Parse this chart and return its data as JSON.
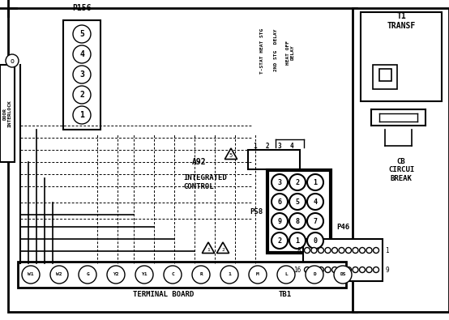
{
  "bg_color": "#ffffff",
  "p156_label": "P156",
  "p156_pins": [
    "5",
    "4",
    "3",
    "2",
    "1"
  ],
  "a92_label": "A92",
  "a92_sub": "INTEGRATED\nCONTROL",
  "p58_label": "P58",
  "p58_pins_grid": [
    [
      "3",
      "2",
      "1"
    ],
    [
      "6",
      "5",
      "4"
    ],
    [
      "9",
      "8",
      "7"
    ],
    [
      "2",
      "1",
      "0"
    ]
  ],
  "p46_label": "P46",
  "p46_top": [
    "",
    "",
    "",
    "",
    "",
    "",
    "",
    "",
    "",
    "",
    ""
  ],
  "p46_bot": [
    "",
    "",
    "",
    "",
    "",
    "",
    "",
    "",
    "",
    "",
    ""
  ],
  "t1_label": "T1\nTRANSF",
  "cb_label": "CB\nCIRCUI\nBREAK",
  "terminal_labels": [
    "W1",
    "W2",
    "G",
    "Y2",
    "Y1",
    "C",
    "R",
    "1",
    "M",
    "L",
    "D",
    "DS"
  ],
  "terminal_board_label": "TERMINAL BOARD",
  "tb1_label": "TB1",
  "relay_col_labels": [
    "T-STAT HEAT STG",
    "2ND STG DELAY",
    "HEAT OFF\nDELAY"
  ],
  "relay_nums": [
    "1",
    "2",
    "3",
    "4"
  ],
  "interlock_label": "DOOR\nINTERLOCK"
}
